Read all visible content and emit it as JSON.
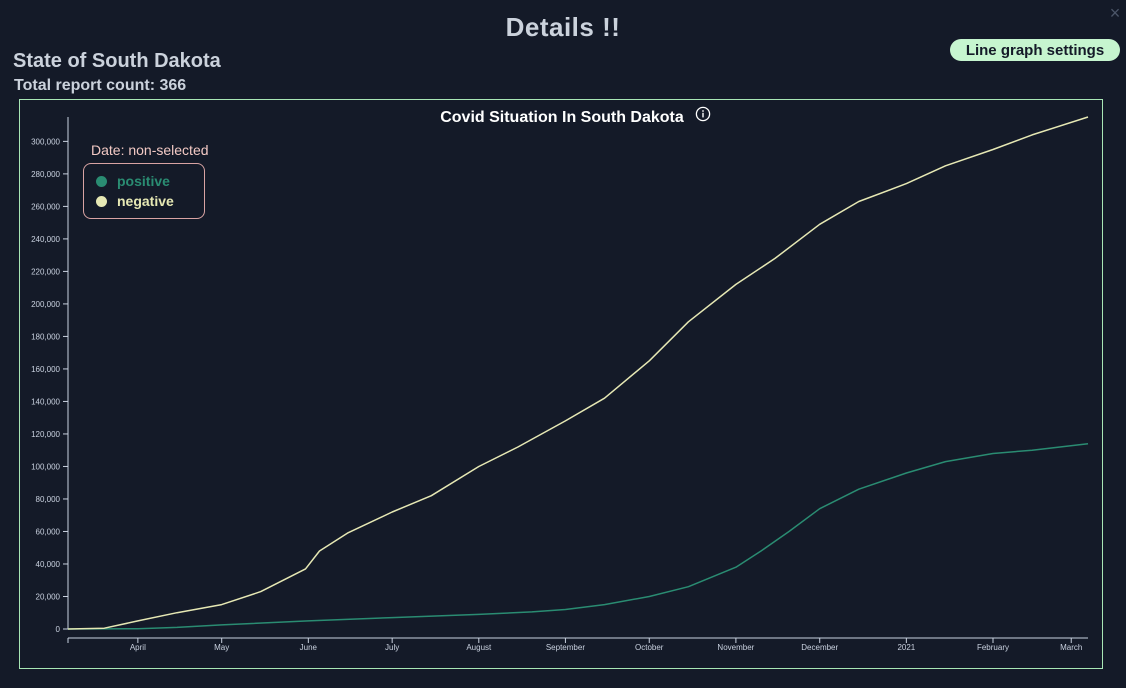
{
  "modal": {
    "title": "Details !!",
    "close_glyph": "×",
    "settings_button_label": "Line graph settings",
    "state_name": "State of South Dakota",
    "report_count_label": "Total report count: 366"
  },
  "chart": {
    "info_icon": "info-circle-icon",
    "date_label": "Date: non-selected",
    "colors": {
      "positive": "#2a8c72",
      "negative": "#e6e8b4",
      "axis": "#c9d1df",
      "border": "#a8e6b5",
      "background": "#141a28"
    }
  },
  "chart_data": {
    "type": "line",
    "title": "Covid Situation In South Dakota",
    "xlabel": "",
    "ylabel": "",
    "x_ticks": [
      "April",
      "May",
      "June",
      "July",
      "August",
      "September",
      "October",
      "November",
      "December",
      "2021",
      "February",
      "March"
    ],
    "y_ticks": [
      "0",
      "20,000",
      "40,000",
      "60,000",
      "80,000",
      "100,000",
      "120,000",
      "140,000",
      "160,000",
      "180,000",
      "200,000",
      "220,000",
      "240,000",
      "260,000",
      "280,000",
      "300,000"
    ],
    "ylim": [
      0,
      315000
    ],
    "x_range": [
      "2020-03-07",
      "2021-03-07"
    ],
    "legend_position": "top-left",
    "series": [
      {
        "name": "positive",
        "points": [
          [
            "2020-03-07",
            0
          ],
          [
            "2020-04-01",
            200
          ],
          [
            "2020-04-15",
            1000
          ],
          [
            "2020-05-01",
            2500
          ],
          [
            "2020-06-01",
            5000
          ],
          [
            "2020-07-01",
            7000
          ],
          [
            "2020-08-01",
            9000
          ],
          [
            "2020-08-20",
            10500
          ],
          [
            "2020-09-01",
            12000
          ],
          [
            "2020-09-15",
            15000
          ],
          [
            "2020-10-01",
            20000
          ],
          [
            "2020-10-15",
            26000
          ],
          [
            "2020-11-01",
            38000
          ],
          [
            "2020-11-10",
            48000
          ],
          [
            "2020-11-20",
            60000
          ],
          [
            "2020-12-01",
            74000
          ],
          [
            "2020-12-15",
            86000
          ],
          [
            "2021-01-01",
            96000
          ],
          [
            "2021-01-15",
            103000
          ],
          [
            "2021-02-01",
            108000
          ],
          [
            "2021-02-15",
            110000
          ],
          [
            "2021-03-07",
            114000
          ]
        ]
      },
      {
        "name": "negative",
        "points": [
          [
            "2020-03-07",
            0
          ],
          [
            "2020-03-20",
            500
          ],
          [
            "2020-04-01",
            5000
          ],
          [
            "2020-04-15",
            10000
          ],
          [
            "2020-05-01",
            15000
          ],
          [
            "2020-05-15",
            23000
          ],
          [
            "2020-05-31",
            37000
          ],
          [
            "2020-06-05",
            48000
          ],
          [
            "2020-06-15",
            59000
          ],
          [
            "2020-07-01",
            72000
          ],
          [
            "2020-07-15",
            82000
          ],
          [
            "2020-08-01",
            100000
          ],
          [
            "2020-08-15",
            112000
          ],
          [
            "2020-09-01",
            128000
          ],
          [
            "2020-09-15",
            142000
          ],
          [
            "2020-10-01",
            165000
          ],
          [
            "2020-10-15",
            189000
          ],
          [
            "2020-11-01",
            212000
          ],
          [
            "2020-11-15",
            228000
          ],
          [
            "2020-12-01",
            249000
          ],
          [
            "2020-12-15",
            263000
          ],
          [
            "2021-01-01",
            274000
          ],
          [
            "2021-01-15",
            285000
          ],
          [
            "2021-02-01",
            295000
          ],
          [
            "2021-02-15",
            304000
          ],
          [
            "2021-03-07",
            315000
          ]
        ]
      }
    ]
  }
}
